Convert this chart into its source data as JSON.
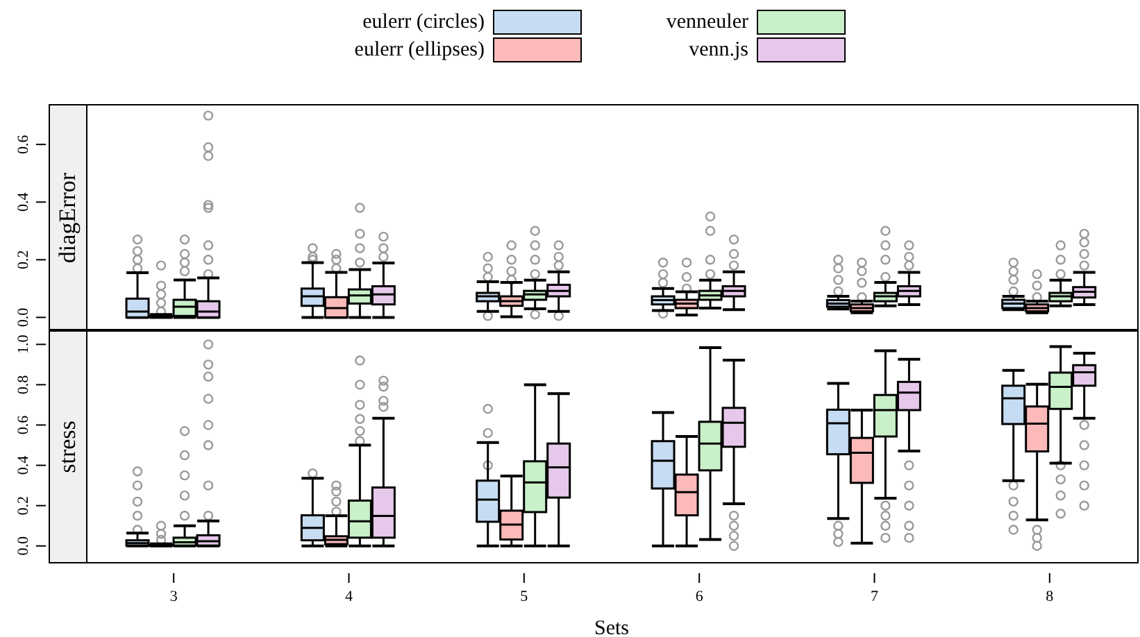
{
  "chart_data": [
    {
      "type": "box",
      "ylabel": "diagError",
      "categories": [
        "3",
        "4",
        "5",
        "6",
        "7",
        "8"
      ],
      "ylim": [
        -0.04,
        0.74
      ],
      "yticks": [
        {
          "value": 0,
          "label": "0.0"
        },
        {
          "value": 0.2,
          "label": "0.2"
        },
        {
          "value": 0.4,
          "label": "0.4"
        },
        {
          "value": 0.6,
          "label": "0.6"
        }
      ],
      "tick_labels": "y",
      "legend": "top",
      "series": [
        {
          "name": "eulerr (circles)",
          "color": "#c6dcf2",
          "boxes": [
            {
              "low": 0,
              "q1": 0,
              "median": 0.02,
              "q3": 0.065,
              "high": 0.155,
              "outliers": [
                0.17,
                0.2,
                0.23,
                0.27
              ]
            },
            {
              "low": 0,
              "q1": 0.04,
              "median": 0.073,
              "q3": 0.1,
              "high": 0.19,
              "outliers": [
                0.2,
                0.21,
                0.24
              ]
            },
            {
              "low": 0.021,
              "q1": 0.056,
              "median": 0.073,
              "q3": 0.085,
              "high": 0.124,
              "outliers": [
                0.005,
                0.14,
                0.17,
                0.21
              ]
            },
            {
              "low": 0.024,
              "q1": 0.045,
              "median": 0.06,
              "q3": 0.073,
              "high": 0.1,
              "outliers": [
                0.013,
                0.12,
                0.15,
                0.19
              ]
            },
            {
              "low": 0.029,
              "q1": 0.037,
              "median": 0.048,
              "q3": 0.06,
              "high": 0.073,
              "outliers": [
                0.09,
                0.13,
                0.17,
                0.2
              ]
            },
            {
              "low": 0.027,
              "q1": 0.032,
              "median": 0.048,
              "q3": 0.061,
              "high": 0.073,
              "outliers": [
                0.09,
                0.13,
                0.16,
                0.19
              ]
            }
          ]
        },
        {
          "name": "eulerr (ellipses)",
          "color": "#fcb9b9",
          "boxes": [
            {
              "low": 0,
              "q1": 0,
              "median": 0.002,
              "q3": 0.005,
              "high": 0.01,
              "outliers": [
                0.02,
                0.05,
                0.08,
                0.11,
                0.18
              ]
            },
            {
              "low": 0,
              "q1": 0,
              "median": 0.032,
              "q3": 0.07,
              "high": 0.156,
              "outliers": [
                0.17,
                0.2,
                0.22
              ]
            },
            {
              "low": 0.002,
              "q1": 0.04,
              "median": 0.056,
              "q3": 0.073,
              "high": 0.121,
              "outliers": [
                0.13,
                0.16,
                0.2,
                0.25
              ]
            },
            {
              "low": 0.008,
              "q1": 0.032,
              "median": 0.048,
              "q3": 0.061,
              "high": 0.089,
              "outliers": [
                0.1,
                0.14,
                0.19
              ]
            },
            {
              "low": 0.016,
              "q1": 0.021,
              "median": 0.032,
              "q3": 0.045,
              "high": 0.056,
              "outliers": [
                0.07,
                0.12,
                0.16,
                0.19
              ]
            },
            {
              "low": 0.016,
              "q1": 0.021,
              "median": 0.032,
              "q3": 0.045,
              "high": 0.056,
              "outliers": [
                0.07,
                0.11,
                0.15
              ]
            }
          ]
        },
        {
          "name": "venneuler",
          "color": "#c9f0c9",
          "boxes": [
            {
              "low": 0,
              "q1": 0.005,
              "median": 0.037,
              "q3": 0.061,
              "high": 0.13,
              "outliers": [
                0.16,
                0.19,
                0.22,
                0.27
              ]
            },
            {
              "low": 0,
              "q1": 0.048,
              "median": 0.076,
              "q3": 0.097,
              "high": 0.166,
              "outliers": [
                0.19,
                0.24,
                0.29,
                0.38
              ]
            },
            {
              "low": 0.03,
              "q1": 0.061,
              "median": 0.08,
              "q3": 0.092,
              "high": 0.129,
              "outliers": [
                0.01,
                0.15,
                0.2,
                0.25,
                0.3
              ]
            },
            {
              "low": 0.032,
              "q1": 0.061,
              "median": 0.076,
              "q3": 0.092,
              "high": 0.129,
              "outliers": [
                0.15,
                0.2,
                0.3,
                0.35
              ]
            },
            {
              "low": 0.04,
              "q1": 0.056,
              "median": 0.073,
              "q3": 0.085,
              "high": 0.121,
              "outliers": [
                0.14,
                0.2,
                0.25,
                0.3
              ]
            },
            {
              "low": 0.04,
              "q1": 0.056,
              "median": 0.073,
              "q3": 0.085,
              "high": 0.129,
              "outliers": [
                0.15,
                0.2,
                0.25
              ]
            }
          ]
        },
        {
          "name": "venn.js",
          "color": "#e6c9ea",
          "boxes": [
            {
              "low": 0,
              "q1": 0,
              "median": 0.02,
              "q3": 0.056,
              "high": 0.137,
              "outliers": [
                0.15,
                0.2,
                0.25,
                0.38,
                0.39,
                0.56,
                0.59,
                0.7
              ]
            },
            {
              "low": 0,
              "q1": 0.045,
              "median": 0.08,
              "q3": 0.108,
              "high": 0.189,
              "outliers": [
                0.21,
                0.24,
                0.28
              ]
            },
            {
              "low": 0.021,
              "q1": 0.073,
              "median": 0.092,
              "q3": 0.113,
              "high": 0.158,
              "outliers": [
                0.005,
                0.18,
                0.21,
                0.25
              ]
            },
            {
              "low": 0.027,
              "q1": 0.073,
              "median": 0.092,
              "q3": 0.108,
              "high": 0.158,
              "outliers": [
                0.18,
                0.22,
                0.27
              ]
            },
            {
              "low": 0.044,
              "q1": 0.073,
              "median": 0.092,
              "q3": 0.108,
              "high": 0.156,
              "outliers": [
                0.18,
                0.21,
                0.25
              ]
            },
            {
              "low": 0.044,
              "q1": 0.069,
              "median": 0.089,
              "q3": 0.105,
              "high": 0.156,
              "outliers": [
                0.18,
                0.22,
                0.26,
                0.29
              ]
            }
          ]
        }
      ]
    },
    {
      "type": "box",
      "ylabel": "stress",
      "xlabel": "Sets",
      "categories": [
        "3",
        "4",
        "5",
        "6",
        "7",
        "8"
      ],
      "ylim": [
        -0.08,
        1.07
      ],
      "yticks": [
        {
          "value": 0,
          "label": "0.0"
        },
        {
          "value": 0.2,
          "label": "0.2"
        },
        {
          "value": 0.4,
          "label": "0.4"
        },
        {
          "value": 0.6,
          "label": "0.6"
        },
        {
          "value": 0.8,
          "label": "0.8"
        },
        {
          "value": 1,
          "label": "1.0"
        }
      ],
      "series": [
        {
          "color": "#c6dcf2",
          "boxes": [
            {
              "low": 0,
              "q1": 0.002,
              "median": 0.014,
              "q3": 0.028,
              "high": 0.064,
              "outliers": [
                0.08,
                0.15,
                0.22,
                0.3,
                0.37
              ]
            },
            {
              "low": 0,
              "q1": 0.028,
              "median": 0.09,
              "q3": 0.152,
              "high": 0.336,
              "outliers": [
                0.36
              ]
            },
            {
              "low": 0,
              "q1": 0.12,
              "median": 0.23,
              "q3": 0.324,
              "high": 0.513,
              "outliers": [
                0.4,
                0.56,
                0.68
              ]
            },
            {
              "low": 0,
              "q1": 0.285,
              "median": 0.423,
              "q3": 0.52,
              "high": 0.662
            },
            {
              "low": 0.136,
              "q1": 0.455,
              "median": 0.609,
              "q3": 0.676,
              "high": 0.807,
              "outliers": [
                0.02,
                0.06,
                0.1
              ]
            },
            {
              "low": 0.324,
              "q1": 0.605,
              "median": 0.733,
              "q3": 0.795,
              "high": 0.871,
              "outliers": [
                0.08,
                0.15,
                0.22,
                0.3
              ]
            }
          ]
        },
        {
          "color": "#fcb9b9",
          "boxes": [
            {
              "low": 0,
              "q1": 0,
              "median": 0.002,
              "q3": 0.005,
              "high": 0.01,
              "outliers": [
                0.03,
                0.06,
                0.1
              ]
            },
            {
              "low": 0,
              "q1": 0.009,
              "median": 0.03,
              "q3": 0.048,
              "high": 0.15,
              "outliers": [
                0.17,
                0.22,
                0.27,
                0.3
              ]
            },
            {
              "low": 0,
              "q1": 0.032,
              "median": 0.106,
              "q3": 0.175,
              "high": 0.347
            },
            {
              "low": 0,
              "q1": 0.152,
              "median": 0.267,
              "q3": 0.354,
              "high": 0.543
            },
            {
              "low": 0.014,
              "q1": 0.313,
              "median": 0.462,
              "q3": 0.536,
              "high": 0.674
            },
            {
              "low": 0.129,
              "q1": 0.469,
              "median": 0.607,
              "q3": 0.692,
              "high": 0.802,
              "outliers": [
                0,
                0.04,
                0.08
              ]
            }
          ]
        },
        {
          "color": "#c9f0c9",
          "boxes": [
            {
              "low": 0,
              "q1": 0.002,
              "median": 0.018,
              "q3": 0.041,
              "high": 0.1,
              "outliers": [
                0.15,
                0.25,
                0.35,
                0.45,
                0.57
              ]
            },
            {
              "low": 0,
              "q1": 0.041,
              "median": 0.122,
              "q3": 0.225,
              "high": 0.5,
              "outliers": [
                0.52,
                0.57,
                0.63,
                0.7,
                0.8,
                0.92
              ]
            },
            {
              "low": 0,
              "q1": 0.168,
              "median": 0.315,
              "q3": 0.42,
              "high": 0.8
            },
            {
              "low": 0.032,
              "q1": 0.375,
              "median": 0.508,
              "q3": 0.616,
              "high": 0.984
            },
            {
              "low": 0.237,
              "q1": 0.543,
              "median": 0.674,
              "q3": 0.749,
              "high": 0.968,
              "outliers": [
                0.04,
                0.1,
                0.15,
                0.2
              ]
            },
            {
              "low": 0.411,
              "q1": 0.68,
              "median": 0.789,
              "q3": 0.86,
              "high": 0.989,
              "outliers": [
                0.16,
                0.25,
                0.33,
                0.4
              ]
            }
          ]
        },
        {
          "color": "#e6c9ea",
          "boxes": [
            {
              "low": 0,
              "q1": 0.002,
              "median": 0.023,
              "q3": 0.053,
              "high": 0.124,
              "outliers": [
                0.15,
                0.3,
                0.5,
                0.6,
                0.73,
                0.84,
                0.9,
                1.0
              ]
            },
            {
              "low": 0,
              "q1": 0.041,
              "median": 0.149,
              "q3": 0.29,
              "high": 0.634,
              "outliers": [
                0.69,
                0.72,
                0.79,
                0.82
              ]
            },
            {
              "low": 0,
              "q1": 0.24,
              "median": 0.39,
              "q3": 0.508,
              "high": 0.756
            },
            {
              "low": 0.209,
              "q1": 0.492,
              "median": 0.611,
              "q3": 0.685,
              "high": 0.922,
              "outliers": [
                0,
                0.05,
                0.1,
                0.15
              ]
            },
            {
              "low": 0.471,
              "q1": 0.674,
              "median": 0.761,
              "q3": 0.814,
              "high": 0.926,
              "outliers": [
                0.04,
                0.1,
                0.2,
                0.3,
                0.4
              ]
            },
            {
              "low": 0.634,
              "q1": 0.795,
              "median": 0.862,
              "q3": 0.897,
              "high": 0.956,
              "outliers": [
                0.2,
                0.3,
                0.4,
                0.5,
                0.6
              ]
            }
          ]
        }
      ]
    }
  ]
}
